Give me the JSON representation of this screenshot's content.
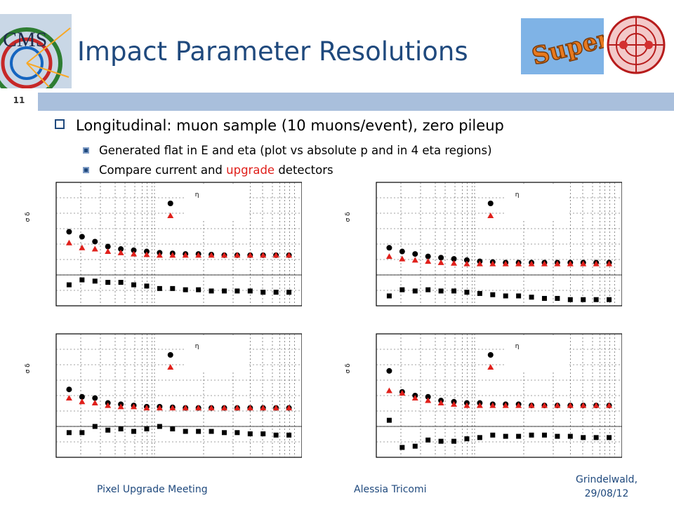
{
  "slide": {
    "title": "Impact Parameter Resolutions",
    "number": "11",
    "logo_text": "CMS",
    "super_logo_text": "Super",
    "accent": "#1f497d",
    "highlight": "#e0201b"
  },
  "bullets": {
    "main": "Longitudinal: muon sample (10 muons/event), zero pileup",
    "sub1": "Generated flat in E and eta (plot vs absolute p and in 4 eta regions)",
    "sub2_pre": "Compare current and ",
    "sub2_highlight": "upgrade",
    "sub2_post": " detectors"
  },
  "footer": {
    "event": "Pixel Upgrade Meeting",
    "author": "Alessia Tricomi",
    "place": "Grindelwald,",
    "date": "29/08/12"
  },
  "chart_data": [
    {
      "type": "scatter",
      "ylabel": "σ δ",
      "legend_label": "η",
      "legend_position": "top-center",
      "x": [
        1,
        2,
        3,
        4,
        5,
        6,
        7,
        8,
        9,
        10,
        11,
        12,
        13,
        14,
        15,
        16,
        17,
        18
      ],
      "series": [
        {
          "marker": "circle",
          "color": "#000000",
          "values": [
            60,
            56,
            52,
            48,
            46,
            45,
            44,
            43,
            42.5,
            42,
            42,
            41.5,
            41,
            41,
            41,
            41,
            41,
            41
          ]
        },
        {
          "marker": "triangle",
          "color": "#e0201b",
          "values": [
            51,
            47,
            46,
            44,
            43,
            42,
            41.5,
            41,
            41,
            41,
            41,
            41,
            41,
            41,
            41,
            41,
            41,
            41
          ]
        },
        {
          "marker": "square",
          "color": "#000000",
          "values": [
            17,
            21,
            20,
            19,
            19,
            17,
            16,
            14,
            14,
            13,
            13,
            12,
            12,
            12,
            12,
            11,
            11,
            11
          ]
        }
      ]
    },
    {
      "type": "scatter",
      "ylabel": "σ δ",
      "legend_label": "η",
      "legend_position": "top-center",
      "x": [
        1,
        2,
        3,
        4,
        5,
        6,
        7,
        8,
        9,
        10,
        11,
        12,
        13,
        14,
        15,
        16,
        17,
        18
      ],
      "series": [
        {
          "marker": "circle",
          "color": "#000000",
          "values": [
            47,
            44,
            42,
            40,
            39,
            38,
            37,
            36,
            35.5,
            35,
            35,
            35,
            35,
            35,
            35,
            35,
            35,
            35
          ]
        },
        {
          "marker": "triangle",
          "color": "#e0201b",
          "values": [
            40,
            38,
            37,
            36,
            35,
            34.5,
            34,
            34,
            34,
            34,
            34,
            34,
            34,
            34,
            34,
            34,
            34,
            34
          ]
        },
        {
          "marker": "square",
          "color": "#000000",
          "values": [
            8,
            13,
            12,
            13,
            12,
            12,
            11,
            10,
            9,
            8,
            8,
            7,
            6,
            6,
            5,
            5,
            5,
            5
          ]
        }
      ]
    },
    {
      "type": "scatter",
      "ylabel": "σ δ",
      "legend_label": "η",
      "legend_position": "top-center",
      "x": [
        1,
        2,
        3,
        4,
        5,
        6,
        7,
        8,
        9,
        10,
        11,
        12,
        13,
        14,
        15,
        16,
        17,
        18
      ],
      "series": [
        {
          "marker": "circle",
          "color": "#000000",
          "values": [
            55,
            49,
            48,
            44,
            43,
            42,
            41,
            41,
            40.5,
            40,
            40,
            40,
            40,
            40,
            40,
            40,
            40,
            40
          ]
        },
        {
          "marker": "triangle",
          "color": "#e0201b",
          "values": [
            48,
            45,
            44,
            42,
            41,
            41,
            40,
            40,
            40,
            40,
            40,
            40,
            40,
            40,
            40,
            40,
            40,
            40
          ]
        },
        {
          "marker": "square",
          "color": "#000000",
          "values": [
            20,
            20,
            25,
            22,
            23,
            21,
            23,
            25,
            23,
            21,
            21,
            21,
            20,
            20,
            19,
            19,
            18,
            18
          ]
        }
      ]
    },
    {
      "type": "scatter",
      "ylabel": "σ δ",
      "legend_label": "η",
      "legend_position": "top-center",
      "x": [
        1,
        2,
        3,
        4,
        5,
        6,
        7,
        8,
        9,
        10,
        11,
        12,
        13,
        14,
        15,
        16,
        17,
        18
      ],
      "series": [
        {
          "marker": "circle",
          "color": "#000000",
          "values": [
            70,
            53,
            50,
            49,
            46,
            45,
            44,
            44,
            43,
            43,
            43,
            42,
            42,
            42,
            42,
            42,
            42,
            42
          ]
        },
        {
          "marker": "triangle",
          "color": "#e0201b",
          "values": [
            54,
            52,
            48,
            46,
            44,
            43,
            42,
            42,
            42,
            42,
            42,
            42,
            42,
            42,
            42,
            42,
            42,
            42
          ]
        },
        {
          "marker": "square",
          "color": "#000000",
          "values": [
            30,
            8,
            9,
            14,
            13,
            13,
            15,
            16,
            18,
            17,
            17,
            18,
            18,
            17,
            17,
            16,
            16,
            16
          ]
        }
      ]
    }
  ]
}
